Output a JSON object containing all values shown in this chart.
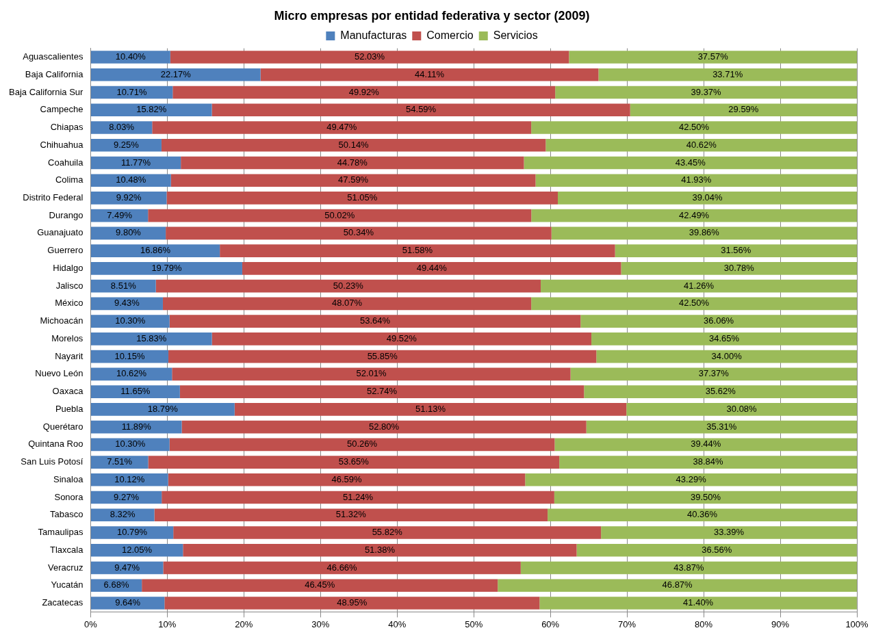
{
  "chart_data": {
    "type": "bar",
    "orientation": "horizontal",
    "stacked": true,
    "title": "Micro empresas por entidad federativa y sector (2009)",
    "categories": [
      "Aguascalientes",
      "Baja California",
      "Baja California Sur",
      "Campeche",
      "Chiapas",
      "Chihuahua",
      "Coahuila",
      "Colima",
      "Distrito Federal",
      "Durango",
      "Guanajuato",
      "Guerrero",
      "Hidalgo",
      "Jalisco",
      "México",
      "Michoacán",
      "Morelos",
      "Nayarit",
      "Nuevo León",
      "Oaxaca",
      "Puebla",
      "Querétaro",
      "Quintana Roo",
      "San Luis Potosí",
      "Sinaloa",
      "Sonora",
      "Tabasco",
      "Tamaulipas",
      "Tlaxcala",
      "Veracruz",
      "Yucatán",
      "Zacatecas"
    ],
    "series": [
      {
        "name": "Manufacturas",
        "color": "#4f81bd",
        "values": [
          10.4,
          22.17,
          10.71,
          15.82,
          8.03,
          9.25,
          11.77,
          10.48,
          9.92,
          7.49,
          9.8,
          16.86,
          19.79,
          8.51,
          9.43,
          10.3,
          15.83,
          10.15,
          10.62,
          11.65,
          18.79,
          11.89,
          10.3,
          7.51,
          10.12,
          9.27,
          8.32,
          10.79,
          12.05,
          9.47,
          6.68,
          9.64
        ],
        "value_labels": [
          "10.40%",
          "22.17%",
          "10.71%",
          "15.82%",
          "8.03%",
          "9.25%",
          "11.77%",
          "10.48%",
          "9.92%",
          "7.49%",
          "9.80%",
          "16.86%",
          "19.79%",
          "8.51%",
          "9.43%",
          "10.30%",
          "15.83%",
          "10.15%",
          "10.62%",
          "11.65%",
          "18.79%",
          "11.89%",
          "10.30%",
          "7.51%",
          "10.12%",
          "9.27%",
          "8.32%",
          "10.79%",
          "12.05%",
          "9.47%",
          "6.68%",
          "9.64%"
        ]
      },
      {
        "name": "Comercio",
        "color": "#c0504d",
        "values": [
          52.03,
          44.11,
          49.92,
          54.59,
          49.47,
          50.14,
          44.78,
          47.59,
          51.05,
          50.02,
          50.34,
          51.58,
          49.44,
          50.23,
          48.07,
          53.64,
          49.52,
          55.85,
          52.01,
          52.74,
          51.13,
          52.8,
          50.26,
          53.65,
          46.59,
          51.24,
          51.32,
          55.82,
          51.38,
          46.66,
          46.45,
          48.95
        ],
        "value_labels": [
          "52.03%",
          "44.11%",
          "49.92%",
          "54.59%",
          "49.47%",
          "50.14%",
          "44.78%",
          "47.59%",
          "51.05%",
          "50.02%",
          "50.34%",
          "51.58%",
          "49.44%",
          "50.23%",
          "48.07%",
          "53.64%",
          "49.52%",
          "55.85%",
          "52.01%",
          "52.74%",
          "51.13%",
          "52.80%",
          "50.26%",
          "53.65%",
          "46.59%",
          "51.24%",
          "51.32%",
          "55.82%",
          "51.38%",
          "46.66%",
          "46.45%",
          "48.95%"
        ]
      },
      {
        "name": "Servicios",
        "color": "#9bbb59",
        "values": [
          37.57,
          33.71,
          39.37,
          29.59,
          42.5,
          40.62,
          43.45,
          41.93,
          39.04,
          42.49,
          39.86,
          31.56,
          30.78,
          41.26,
          42.5,
          36.06,
          34.65,
          34.0,
          37.37,
          35.62,
          30.08,
          35.31,
          39.44,
          38.84,
          43.29,
          39.5,
          40.36,
          33.39,
          36.56,
          43.87,
          46.87,
          41.4
        ],
        "value_labels": [
          "37.57%",
          "33.71%",
          "39.37%",
          "29.59%",
          "42.50%",
          "40.62%",
          "43.45%",
          "41.93%",
          "39.04%",
          "42.49%",
          "39.86%",
          "31.56%",
          "30.78%",
          "41.26%",
          "42.50%",
          "36.06%",
          "34.65%",
          "34.00%",
          "37.37%",
          "35.62%",
          "30.08%",
          "35.31%",
          "39.44%",
          "38.84%",
          "43.29%",
          "39.50%",
          "40.36%",
          "33.39%",
          "36.56%",
          "43.87%",
          "46.87%",
          "41.40%"
        ]
      }
    ],
    "xlim": [
      0,
      100
    ],
    "xticks": [
      {
        "value": 0,
        "label": "0%"
      },
      {
        "value": 10,
        "label": "10%"
      },
      {
        "value": 20,
        "label": "20%"
      },
      {
        "value": 30,
        "label": "30%"
      },
      {
        "value": 40,
        "label": "40%"
      },
      {
        "value": 50,
        "label": "50%"
      },
      {
        "value": 60,
        "label": "60%"
      },
      {
        "value": 70,
        "label": "70%"
      },
      {
        "value": 80,
        "label": "80%"
      },
      {
        "value": 90,
        "label": "90%"
      },
      {
        "value": 100,
        "label": "100%"
      }
    ],
    "grid": "x",
    "legend": "top"
  }
}
